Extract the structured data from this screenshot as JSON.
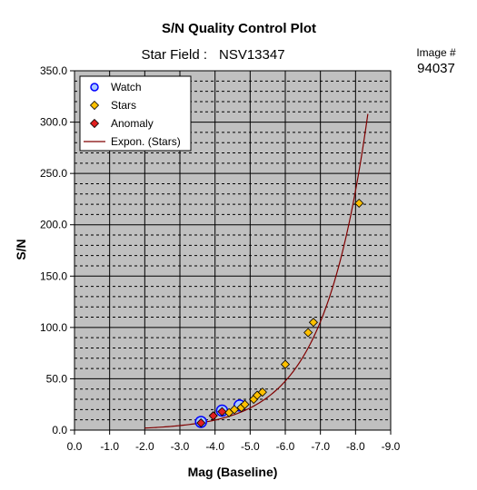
{
  "chart_data": {
    "type": "scatter",
    "title": "S/N Quality Control Plot",
    "subtitle_label": "Star Field :",
    "subtitle_value": "NSV13347",
    "image_label": "Image #",
    "image_value": "94037",
    "xlabel": "Mag (Baseline)",
    "ylabel": "S/N",
    "xlim": [
      0,
      -9
    ],
    "ylim": [
      0,
      350
    ],
    "x_ticks": [
      "0.0",
      "-1.0",
      "-2.0",
      "-3.0",
      "-4.0",
      "-5.0",
      "-6.0",
      "-7.0",
      "-8.0",
      "-9.0"
    ],
    "y_ticks": [
      "0.0",
      "50.0",
      "100.0",
      "150.0",
      "200.0",
      "250.0",
      "300.0",
      "350.0"
    ],
    "grid": true,
    "plot_background": "#c0c0c0",
    "legend_position": "top-left",
    "series": [
      {
        "name": "Watch",
        "marker": "circle",
        "color": "#aacbff",
        "edge": "#0000ff",
        "points": [
          {
            "x": -3.6,
            "y": 8
          },
          {
            "x": -4.2,
            "y": 19
          },
          {
            "x": -4.7,
            "y": 24
          }
        ]
      },
      {
        "name": "Stars",
        "marker": "diamond",
        "color": "#ffc000",
        "points": [
          {
            "x": -4.4,
            "y": 17
          },
          {
            "x": -4.55,
            "y": 20
          },
          {
            "x": -4.75,
            "y": 22
          },
          {
            "x": -4.85,
            "y": 25
          },
          {
            "x": -5.1,
            "y": 30
          },
          {
            "x": -5.2,
            "y": 34
          },
          {
            "x": -5.35,
            "y": 37
          },
          {
            "x": -6.0,
            "y": 64
          },
          {
            "x": -6.65,
            "y": 95
          },
          {
            "x": -6.8,
            "y": 105
          },
          {
            "x": -8.1,
            "y": 221
          }
        ]
      },
      {
        "name": "Anomaly",
        "marker": "diamond",
        "color": "#e02020",
        "points": [
          {
            "x": -3.6,
            "y": 7
          },
          {
            "x": -3.95,
            "y": 14
          },
          {
            "x": -4.2,
            "y": 18
          }
        ]
      },
      {
        "name": "Expon. (Stars)",
        "marker": "line",
        "color": "#800000",
        "fit": {
          "a": 0.41,
          "b": 0.793,
          "x_from": -2.0,
          "x_to": -8.35
        }
      }
    ]
  }
}
